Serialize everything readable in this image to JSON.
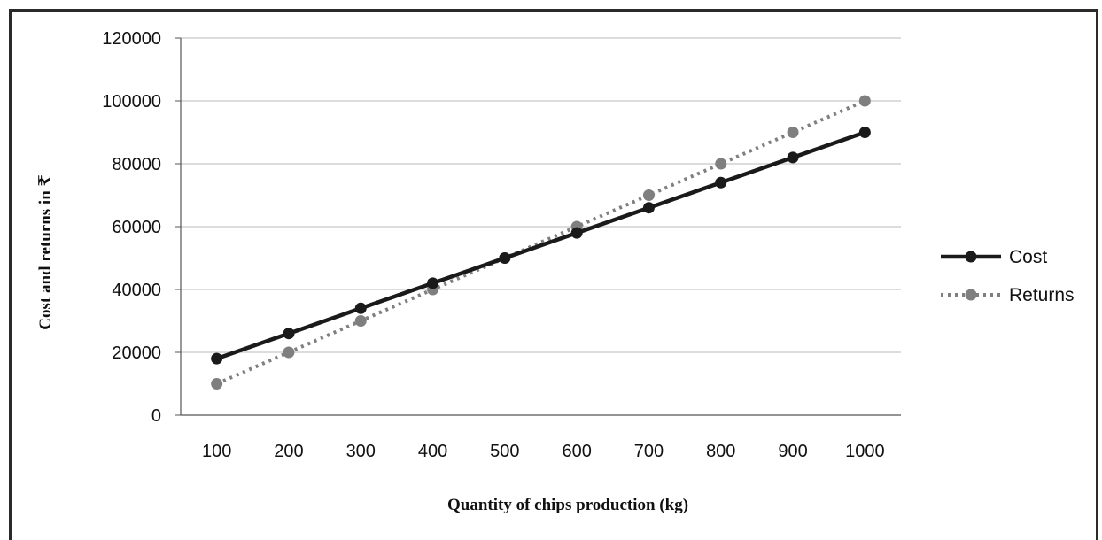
{
  "chart_data": {
    "type": "line",
    "title": "",
    "xlabel": "Quantity of chips production (kg)",
    "ylabel": "Cost and returns in ₹",
    "categories": [
      "100",
      "200",
      "300",
      "400",
      "500",
      "600",
      "700",
      "800",
      "900",
      "1000"
    ],
    "yticks": [
      "0",
      "20000",
      "40000",
      "60000",
      "80000",
      "100000",
      "120000"
    ],
    "ylim": [
      0,
      120000
    ],
    "grid": true,
    "legend_position": "right",
    "series": [
      {
        "name": "Cost",
        "values": [
          18000,
          26000,
          34000,
          42000,
          50000,
          58000,
          66000,
          74000,
          82000,
          90000
        ],
        "color": "#1a1a1a",
        "style": "solid"
      },
      {
        "name": "Returns",
        "values": [
          10000,
          20000,
          30000,
          40000,
          50000,
          60000,
          70000,
          80000,
          90000,
          100000
        ],
        "color": "#7f7f7f",
        "style": "dotted"
      }
    ]
  }
}
